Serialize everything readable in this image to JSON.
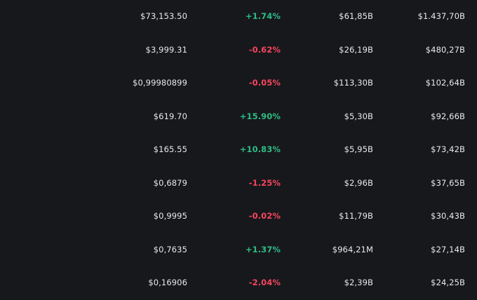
{
  "colors": {
    "background": "#17181c",
    "text": "#e9eaee",
    "positive": "#2fbd85",
    "negative": "#f6465d"
  },
  "rows": [
    {
      "price": "$73,153.50",
      "change": "+1.74%",
      "direction": "up",
      "volume": "$61,85B",
      "market_cap": "$1.437,70B"
    },
    {
      "price": "$3,999.31",
      "change": "-0.62%",
      "direction": "down",
      "volume": "$26,19B",
      "market_cap": "$480,27B"
    },
    {
      "price": "$0,99980899",
      "change": "-0.05%",
      "direction": "down",
      "volume": "$113,30B",
      "market_cap": "$102,64B"
    },
    {
      "price": "$619.70",
      "change": "+15.90%",
      "direction": "up",
      "volume": "$5,30B",
      "market_cap": "$92,66B"
    },
    {
      "price": "$165.55",
      "change": "+10.83%",
      "direction": "up",
      "volume": "$5,95B",
      "market_cap": "$73,42B"
    },
    {
      "price": "$0,6879",
      "change": "-1.25%",
      "direction": "down",
      "volume": "$2,96B",
      "market_cap": "$37,65B"
    },
    {
      "price": "$0,9995",
      "change": "-0.02%",
      "direction": "down",
      "volume": "$11,79B",
      "market_cap": "$30,43B"
    },
    {
      "price": "$0,7635",
      "change": "+1.37%",
      "direction": "up",
      "volume": "$964,21M",
      "market_cap": "$27,14B"
    },
    {
      "price": "$0,16906",
      "change": "-2.04%",
      "direction": "down",
      "volume": "$2,39B",
      "market_cap": "$24,25B"
    }
  ]
}
